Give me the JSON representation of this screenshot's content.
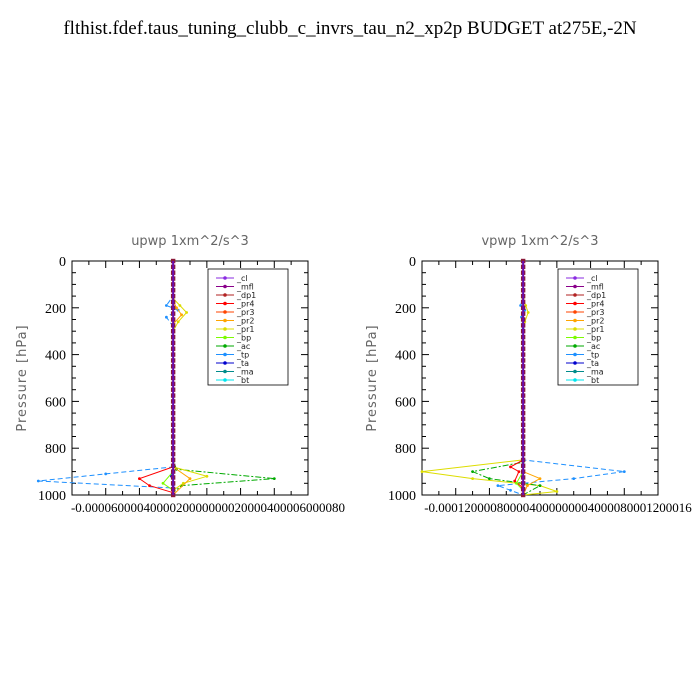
{
  "title": "flthist.fdef.taus_tuning_clubb_c_invrs_tau_n2_xp2p  BUDGET at275E,-2N",
  "legend_entries": [
    "_cl",
    "_mfl",
    "_dp1",
    "_pr4",
    "_pr3",
    "_pr2",
    "_pr1",
    "_bp",
    "_ac",
    "_tp",
    "_ta",
    "_ma",
    "_bt"
  ],
  "series_colors": {
    "_cl": "#8a2be2",
    "_mfl": "#8b008b",
    "_dp1": "#b22222",
    "_pr4": "#ff0000",
    "_pr3": "#ff4500",
    "_pr2": "#ffa500",
    "_pr1": "#dddd00",
    "_bp": "#7cfc00",
    "_ac": "#00aa00",
    "_tp": "#1e90ff",
    "_ta": "#0000cd",
    "_ma": "#008b8b",
    "_bt": "#00e5ee"
  },
  "chart_data": [
    {
      "type": "line",
      "title": "upwp   1xm^2/s^3",
      "ylabel": "Pressure [hPa]",
      "ylim": [
        1000,
        0
      ],
      "xlim": [
        -6e-05,
        8e-05
      ],
      "yticks": [
        "0",
        "200",
        "400",
        "600",
        "800",
        "1000"
      ],
      "xtick_labels": [
        "-0.00006",
        "-0.00004",
        "-0.00002",
        "0",
        "0.00002",
        "0.00004",
        "0.00006",
        "0.00008"
      ],
      "xtick_label_text": "-0.0000600004000020000000020000400006000080",
      "legend": "top-right",
      "series": [
        {
          "name": "_ac",
          "x": [
            0,
            0,
            2e-06,
            6e-05,
            5e-06,
            0,
            0
          ],
          "y": [
            0,
            850,
            890,
            930,
            960,
            990,
            1000
          ]
        },
        {
          "name": "_tp",
          "x": [
            0,
            0,
            -4e-06,
            3e-06,
            -4e-06,
            0,
            0,
            -4e-05,
            -8e-05,
            0,
            0
          ],
          "y": [
            0,
            150,
            190,
            210,
            240,
            280,
            880,
            910,
            940,
            970,
            1000
          ]
        },
        {
          "name": "_pr1",
          "x": [
            0,
            0,
            4e-06,
            8e-06,
            3e-06,
            0,
            0,
            2e-05,
            6e-06,
            0,
            0
          ],
          "y": [
            0,
            160,
            190,
            220,
            260,
            300,
            880,
            920,
            950,
            980,
            1000
          ]
        },
        {
          "name": "_pr2",
          "x": [
            0,
            0,
            2e-06,
            5e-06,
            0,
            0,
            1e-05,
            0
          ],
          "y": [
            0,
            170,
            200,
            230,
            270,
            880,
            930,
            1000
          ]
        },
        {
          "name": "_pr4",
          "x": [
            0,
            0,
            -2e-05,
            -1.4e-05,
            0,
            0
          ],
          "y": [
            0,
            880,
            930,
            960,
            990,
            1000
          ]
        },
        {
          "name": "_bp",
          "x": [
            0,
            0,
            -6e-06,
            0,
            0
          ],
          "y": [
            0,
            900,
            950,
            980,
            1000
          ]
        },
        {
          "name": "_ta",
          "x": [
            0,
            0,
            -1e-06,
            0,
            0
          ],
          "y": [
            0,
            880,
            920,
            960,
            1000
          ]
        },
        {
          "name": "_cl",
          "x": [
            0,
            0
          ],
          "y": [
            0,
            1000
          ]
        },
        {
          "name": "_mfl",
          "x": [
            0,
            0
          ],
          "y": [
            0,
            1000
          ]
        },
        {
          "name": "_dp1",
          "x": [
            0,
            0
          ],
          "y": [
            0,
            1000
          ]
        },
        {
          "name": "_ma",
          "x": [
            0,
            0
          ],
          "y": [
            0,
            1000
          ]
        },
        {
          "name": "_bt",
          "x": [
            0,
            0
          ],
          "y": [
            0,
            1000
          ]
        }
      ]
    },
    {
      "type": "line",
      "title": "vpwp   1xm^2/s^3",
      "ylabel": "Pressure [hPa]",
      "ylim": [
        1000,
        0
      ],
      "xlim": [
        -0.00012,
        0.00016
      ],
      "yticks": [
        "0",
        "200",
        "400",
        "600",
        "800",
        "1000"
      ],
      "xtick_labels": [
        "-0.00012",
        "-0.00008",
        "-0.00004",
        "0",
        "0.00004",
        "0.00008",
        "0.00012",
        "0.00016"
      ],
      "xtick_label_text": "-0.000120000800004000000004000080001200016",
      "legend": "top-right",
      "series": [
        {
          "name": "_tp",
          "x": [
            0,
            0,
            -3e-06,
            2e-06,
            -2e-06,
            0,
            0,
            0.00012,
            6e-05,
            -3e-05,
            -1.5e-05,
            0
          ],
          "y": [
            0,
            150,
            190,
            210,
            240,
            290,
            850,
            900,
            930,
            960,
            980,
            1000
          ]
        },
        {
          "name": "_pr1",
          "x": [
            0,
            0,
            3e-06,
            6e-06,
            2e-06,
            0,
            0,
            -0.00012,
            -6e-05,
            2e-05,
            4e-05,
            0
          ],
          "y": [
            0,
            160,
            190,
            220,
            260,
            300,
            850,
            900,
            930,
            960,
            985,
            1000
          ]
        },
        {
          "name": "_ac",
          "x": [
            0,
            0,
            -6e-05,
            -4e-05,
            2e-05,
            0
          ],
          "y": [
            0,
            860,
            900,
            930,
            960,
            1000
          ]
        },
        {
          "name": "_pr4",
          "x": [
            0,
            0,
            -1.5e-05,
            -5e-06,
            -1e-05,
            0,
            0
          ],
          "y": [
            0,
            850,
            880,
            900,
            940,
            970,
            1000
          ]
        },
        {
          "name": "_pr2",
          "x": [
            0,
            0,
            2e-05,
            5e-06,
            0
          ],
          "y": [
            0,
            900,
            930,
            960,
            1000
          ]
        },
        {
          "name": "_bp",
          "x": [
            0,
            0,
            -8e-06,
            0,
            0
          ],
          "y": [
            0,
            900,
            950,
            980,
            1000
          ]
        },
        {
          "name": "_cl",
          "x": [
            0,
            0
          ],
          "y": [
            0,
            1000
          ]
        },
        {
          "name": "_mfl",
          "x": [
            0,
            0
          ],
          "y": [
            0,
            1000
          ]
        },
        {
          "name": "_dp1",
          "x": [
            0,
            0
          ],
          "y": [
            0,
            1000
          ]
        },
        {
          "name": "_ta",
          "x": [
            0,
            0
          ],
          "y": [
            0,
            1000
          ]
        },
        {
          "name": "_ma",
          "x": [
            0,
            0
          ],
          "y": [
            0,
            1000
          ]
        },
        {
          "name": "_bt",
          "x": [
            0,
            0
          ],
          "y": [
            0,
            1000
          ]
        }
      ]
    }
  ]
}
